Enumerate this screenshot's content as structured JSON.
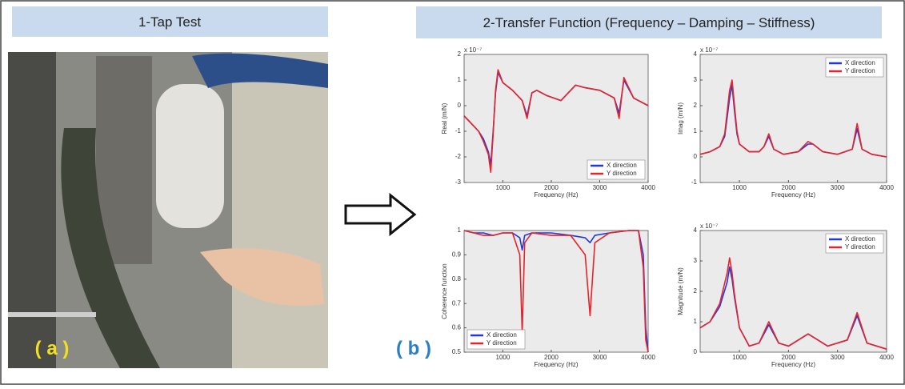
{
  "panel_a": {
    "header": "1-Tap Test",
    "label": "( a )"
  },
  "panel_b": {
    "header": "2-Transfer Function (Frequency – Damping – Stiffness)",
    "label": "( b )"
  },
  "chart_data": [
    {
      "type": "line",
      "exponent_label": "x 10⁻⁷",
      "x_label": "Frequency (Hz)",
      "y_label": "Real (m/N)",
      "x": [
        200,
        300,
        400,
        500,
        600,
        700,
        750,
        800,
        850,
        900,
        1000,
        1200,
        1400,
        1500,
        1600,
        1700,
        1900,
        2200,
        2400,
        2500,
        2700,
        3000,
        3300,
        3400,
        3500,
        3700,
        4000
      ],
      "series": [
        {
          "name": "X direction",
          "color": "#2336e0",
          "values": [
            -0.4,
            -0.6,
            -0.8,
            -1.0,
            -1.3,
            -1.8,
            -2.3,
            -1.0,
            0.5,
            1.3,
            0.9,
            0.6,
            0.2,
            -0.4,
            0.5,
            0.6,
            0.4,
            0.2,
            0.6,
            0.8,
            0.7,
            0.6,
            0.3,
            -0.3,
            1.0,
            0.3,
            0.0
          ]
        },
        {
          "name": "Y direction",
          "color": "#e8232a",
          "values": [
            -0.4,
            -0.6,
            -0.8,
            -1.0,
            -1.4,
            -1.9,
            -2.6,
            -1.1,
            0.6,
            1.4,
            0.9,
            0.6,
            0.2,
            -0.5,
            0.5,
            0.6,
            0.4,
            0.2,
            0.6,
            0.8,
            0.7,
            0.6,
            0.3,
            -0.5,
            1.1,
            0.3,
            0.0
          ]
        }
      ],
      "xlim": [
        200,
        4000
      ],
      "xticks": [
        1000,
        2000,
        3000,
        4000
      ],
      "ylim": [
        -3,
        2
      ],
      "yticks": [
        -3,
        -2,
        -1,
        0,
        1,
        2
      ],
      "legend": "lower-right"
    },
    {
      "type": "line",
      "exponent_label": "x 10⁻⁷",
      "x_label": "Frequency (Hz)",
      "y_label": "Imag (m/N)",
      "x": [
        200,
        400,
        600,
        700,
        800,
        850,
        900,
        950,
        1000,
        1200,
        1400,
        1500,
        1600,
        1700,
        1900,
        2200,
        2400,
        2500,
        2700,
        3000,
        3300,
        3400,
        3500,
        3700,
        4000
      ],
      "series": [
        {
          "name": "X direction",
          "color": "#2336e0",
          "values": [
            0.1,
            0.2,
            0.4,
            0.8,
            2.3,
            2.8,
            1.8,
            0.9,
            0.5,
            0.2,
            0.2,
            0.4,
            0.8,
            0.3,
            0.1,
            0.2,
            0.5,
            0.5,
            0.2,
            0.1,
            0.3,
            1.1,
            0.3,
            0.1,
            0.0
          ]
        },
        {
          "name": "Y direction",
          "color": "#e8232a",
          "values": [
            0.1,
            0.2,
            0.4,
            0.9,
            2.6,
            3.0,
            2.0,
            1.0,
            0.5,
            0.2,
            0.2,
            0.4,
            0.9,
            0.3,
            0.1,
            0.2,
            0.6,
            0.5,
            0.2,
            0.1,
            0.3,
            1.3,
            0.3,
            0.1,
            0.0
          ]
        }
      ],
      "xlim": [
        200,
        4000
      ],
      "xticks": [
        1000,
        2000,
        3000,
        4000
      ],
      "ylim": [
        -1,
        4
      ],
      "yticks": [
        -1,
        0,
        1,
        2,
        3,
        4
      ],
      "legend": "upper-right"
    },
    {
      "type": "line",
      "x_label": "Frequency (Hz)",
      "y_label": "Coherence function",
      "x": [
        200,
        400,
        600,
        800,
        1000,
        1200,
        1350,
        1400,
        1450,
        1600,
        2000,
        2400,
        2700,
        2800,
        2900,
        3200,
        3600,
        3800,
        3900,
        3950,
        4000
      ],
      "series": [
        {
          "name": "X direction",
          "color": "#2336e0",
          "values": [
            1.0,
            0.99,
            0.99,
            0.98,
            0.99,
            0.99,
            0.97,
            0.92,
            0.98,
            0.99,
            0.99,
            0.98,
            0.97,
            0.95,
            0.98,
            0.99,
            1.0,
            1.0,
            0.9,
            0.6,
            0.5
          ]
        },
        {
          "name": "Y direction",
          "color": "#e8232a",
          "values": [
            1.0,
            0.99,
            0.98,
            0.98,
            0.99,
            0.99,
            0.9,
            0.58,
            0.95,
            0.99,
            0.98,
            0.98,
            0.9,
            0.65,
            0.95,
            0.99,
            1.0,
            1.0,
            0.85,
            0.55,
            0.5
          ]
        }
      ],
      "xlim": [
        200,
        4000
      ],
      "xticks": [
        1000,
        2000,
        3000,
        4000
      ],
      "ylim": [
        0.5,
        1
      ],
      "yticks": [
        0.5,
        0.6,
        0.7,
        0.8,
        0.9,
        1
      ],
      "legend": "lower-left"
    },
    {
      "type": "line",
      "exponent_label": "x 10⁻⁷",
      "x_label": "Frequency (Hz)",
      "y_label": "Magnitude (m/N)",
      "x": [
        200,
        400,
        600,
        750,
        800,
        850,
        900,
        1000,
        1200,
        1400,
        1600,
        1800,
        2000,
        2400,
        2800,
        3200,
        3400,
        3600,
        4000
      ],
      "series": [
        {
          "name": "X direction",
          "color": "#2336e0",
          "values": [
            0.8,
            1.0,
            1.5,
            2.3,
            2.8,
            2.4,
            1.8,
            0.8,
            0.2,
            0.3,
            0.9,
            0.3,
            0.2,
            0.6,
            0.2,
            0.4,
            1.2,
            0.3,
            0.1
          ]
        },
        {
          "name": "Y direction",
          "color": "#e8232a",
          "values": [
            0.8,
            1.0,
            1.6,
            2.6,
            3.1,
            2.6,
            1.9,
            0.8,
            0.2,
            0.3,
            1.0,
            0.3,
            0.2,
            0.6,
            0.2,
            0.4,
            1.3,
            0.3,
            0.1
          ]
        }
      ],
      "xlim": [
        200,
        4000
      ],
      "xticks": [
        1000,
        2000,
        3000,
        4000
      ],
      "ylim": [
        0,
        4
      ],
      "yticks": [
        0,
        1,
        2,
        3,
        4
      ],
      "legend": "upper-right"
    }
  ]
}
